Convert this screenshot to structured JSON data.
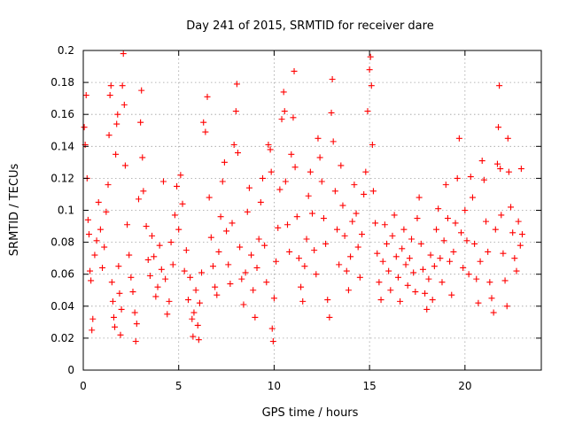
{
  "chart_data": {
    "type": "scatter",
    "title": "Day 241 of 2015, SRMTID for receiver dare",
    "xlabel": "GPS time / hours",
    "ylabel": "SRMTID / TECUs",
    "xlim": [
      0,
      24
    ],
    "ylim": [
      0,
      0.2
    ],
    "xticks": [
      0,
      5,
      10,
      15,
      20
    ],
    "xtick_labels": [
      "0",
      "5",
      "10",
      "15",
      "20"
    ],
    "yticks": [
      0,
      0.02,
      0.04,
      0.06,
      0.08,
      0.1,
      0.12,
      0.14,
      0.16,
      0.18,
      0.2
    ],
    "ytick_labels": [
      "0",
      "0.02",
      "0.04",
      "0.06",
      "0.08",
      "0.1",
      "0.12",
      "0.14",
      "0.16",
      "0.18",
      "0.2"
    ],
    "grid": true,
    "marker": "+",
    "series": [
      {
        "name": "SRMTID",
        "color": "#ff0000",
        "points": [
          [
            0.05,
            0.152
          ],
          [
            0.1,
            0.141
          ],
          [
            0.15,
            0.172
          ],
          [
            0.2,
            0.12
          ],
          [
            0.25,
            0.094
          ],
          [
            0.3,
            0.085
          ],
          [
            0.35,
            0.062
          ],
          [
            0.4,
            0.056
          ],
          [
            0.45,
            0.025
          ],
          [
            0.5,
            0.032
          ],
          [
            0.6,
            0.072
          ],
          [
            0.7,
            0.081
          ],
          [
            0.8,
            0.105
          ],
          [
            0.9,
            0.088
          ],
          [
            1.0,
            0.064
          ],
          [
            1.1,
            0.077
          ],
          [
            1.2,
            0.099
          ],
          [
            1.3,
            0.116
          ],
          [
            1.35,
            0.147
          ],
          [
            1.4,
            0.172
          ],
          [
            1.45,
            0.178
          ],
          [
            1.5,
            0.055
          ],
          [
            1.55,
            0.043
          ],
          [
            1.6,
            0.033
          ],
          [
            1.65,
            0.027
          ],
          [
            1.7,
            0.135
          ],
          [
            1.75,
            0.154
          ],
          [
            1.8,
            0.16
          ],
          [
            1.85,
            0.065
          ],
          [
            1.9,
            0.048
          ],
          [
            1.95,
            0.022
          ],
          [
            2.0,
            0.038
          ],
          [
            2.05,
            0.178
          ],
          [
            2.1,
            0.198
          ],
          [
            2.15,
            0.166
          ],
          [
            2.2,
            0.128
          ],
          [
            2.3,
            0.091
          ],
          [
            2.4,
            0.072
          ],
          [
            2.5,
            0.058
          ],
          [
            2.6,
            0.049
          ],
          [
            2.7,
            0.036
          ],
          [
            2.75,
            0.018
          ],
          [
            2.8,
            0.029
          ],
          [
            2.9,
            0.107
          ],
          [
            3.0,
            0.155
          ],
          [
            3.05,
            0.175
          ],
          [
            3.1,
            0.133
          ],
          [
            3.15,
            0.112
          ],
          [
            3.3,
            0.09
          ],
          [
            3.4,
            0.069
          ],
          [
            3.5,
            0.059
          ],
          [
            3.6,
            0.084
          ],
          [
            3.7,
            0.071
          ],
          [
            3.8,
            0.046
          ],
          [
            3.9,
            0.052
          ],
          [
            4.0,
            0.078
          ],
          [
            4.1,
            0.063
          ],
          [
            4.2,
            0.118
          ],
          [
            4.3,
            0.057
          ],
          [
            4.4,
            0.035
          ],
          [
            4.5,
            0.043
          ],
          [
            4.6,
            0.08
          ],
          [
            4.7,
            0.066
          ],
          [
            4.8,
            0.097
          ],
          [
            4.9,
            0.115
          ],
          [
            5.0,
            0.088
          ],
          [
            5.1,
            0.122
          ],
          [
            5.2,
            0.104
          ],
          [
            5.3,
            0.062
          ],
          [
            5.4,
            0.075
          ],
          [
            5.5,
            0.044
          ],
          [
            5.6,
            0.058
          ],
          [
            5.7,
            0.032
          ],
          [
            5.75,
            0.021
          ],
          [
            5.8,
            0.036
          ],
          [
            5.9,
            0.05
          ],
          [
            6.0,
            0.028
          ],
          [
            6.05,
            0.019
          ],
          [
            6.1,
            0.042
          ],
          [
            6.2,
            0.061
          ],
          [
            6.3,
            0.155
          ],
          [
            6.4,
            0.149
          ],
          [
            6.5,
            0.171
          ],
          [
            6.6,
            0.108
          ],
          [
            6.7,
            0.083
          ],
          [
            6.8,
            0.065
          ],
          [
            6.9,
            0.052
          ],
          [
            7.0,
            0.047
          ],
          [
            7.1,
            0.074
          ],
          [
            7.2,
            0.096
          ],
          [
            7.3,
            0.118
          ],
          [
            7.4,
            0.13
          ],
          [
            7.5,
            0.087
          ],
          [
            7.6,
            0.066
          ],
          [
            7.7,
            0.054
          ],
          [
            7.8,
            0.092
          ],
          [
            7.9,
            0.141
          ],
          [
            8.0,
            0.162
          ],
          [
            8.05,
            0.179
          ],
          [
            8.1,
            0.136
          ],
          [
            8.2,
            0.077
          ],
          [
            8.3,
            0.057
          ],
          [
            8.4,
            0.041
          ],
          [
            8.5,
            0.061
          ],
          [
            8.6,
            0.099
          ],
          [
            8.7,
            0.114
          ],
          [
            8.8,
            0.072
          ],
          [
            8.9,
            0.05
          ],
          [
            9.0,
            0.033
          ],
          [
            9.1,
            0.064
          ],
          [
            9.2,
            0.082
          ],
          [
            9.3,
            0.105
          ],
          [
            9.4,
            0.12
          ],
          [
            9.5,
            0.078
          ],
          [
            9.6,
            0.055
          ],
          [
            9.7,
            0.141
          ],
          [
            9.8,
            0.138
          ],
          [
            9.85,
            0.124
          ],
          [
            9.9,
            0.026
          ],
          [
            9.95,
            0.018
          ],
          [
            10.0,
            0.045
          ],
          [
            10.1,
            0.068
          ],
          [
            10.2,
            0.089
          ],
          [
            10.3,
            0.113
          ],
          [
            10.4,
            0.157
          ],
          [
            10.5,
            0.174
          ],
          [
            10.55,
            0.162
          ],
          [
            10.6,
            0.118
          ],
          [
            10.7,
            0.091
          ],
          [
            10.8,
            0.074
          ],
          [
            10.9,
            0.135
          ],
          [
            11.0,
            0.158
          ],
          [
            11.05,
            0.187
          ],
          [
            11.1,
            0.127
          ],
          [
            11.2,
            0.096
          ],
          [
            11.3,
            0.07
          ],
          [
            11.4,
            0.052
          ],
          [
            11.5,
            0.043
          ],
          [
            11.6,
            0.065
          ],
          [
            11.7,
            0.082
          ],
          [
            11.8,
            0.109
          ],
          [
            11.9,
            0.124
          ],
          [
            12.0,
            0.098
          ],
          [
            12.1,
            0.075
          ],
          [
            12.2,
            0.06
          ],
          [
            12.3,
            0.145
          ],
          [
            12.4,
            0.133
          ],
          [
            12.5,
            0.118
          ],
          [
            12.6,
            0.095
          ],
          [
            12.7,
            0.079
          ],
          [
            12.8,
            0.044
          ],
          [
            12.9,
            0.033
          ],
          [
            13.0,
            0.161
          ],
          [
            13.05,
            0.182
          ],
          [
            13.1,
            0.143
          ],
          [
            13.2,
            0.112
          ],
          [
            13.3,
            0.088
          ],
          [
            13.4,
            0.066
          ],
          [
            13.5,
            0.128
          ],
          [
            13.6,
            0.103
          ],
          [
            13.7,
            0.084
          ],
          [
            13.8,
            0.062
          ],
          [
            13.9,
            0.05
          ],
          [
            14.0,
            0.071
          ],
          [
            14.1,
            0.093
          ],
          [
            14.2,
            0.116
          ],
          [
            14.3,
            0.098
          ],
          [
            14.4,
            0.077
          ],
          [
            14.5,
            0.058
          ],
          [
            14.6,
            0.085
          ],
          [
            14.7,
            0.11
          ],
          [
            14.8,
            0.124
          ],
          [
            14.9,
            0.162
          ],
          [
            15.0,
            0.188
          ],
          [
            15.05,
            0.196
          ],
          [
            15.1,
            0.178
          ],
          [
            15.15,
            0.141
          ],
          [
            15.2,
            0.112
          ],
          [
            15.3,
            0.092
          ],
          [
            15.4,
            0.073
          ],
          [
            15.5,
            0.055
          ],
          [
            15.6,
            0.044
          ],
          [
            15.7,
            0.068
          ],
          [
            15.8,
            0.091
          ],
          [
            15.9,
            0.079
          ],
          [
            16.0,
            0.062
          ],
          [
            16.1,
            0.05
          ],
          [
            16.2,
            0.084
          ],
          [
            16.3,
            0.097
          ],
          [
            16.4,
            0.071
          ],
          [
            16.5,
            0.058
          ],
          [
            16.6,
            0.043
          ],
          [
            16.7,
            0.076
          ],
          [
            16.8,
            0.088
          ],
          [
            16.9,
            0.066
          ],
          [
            17.0,
            0.053
          ],
          [
            17.1,
            0.07
          ],
          [
            17.2,
            0.082
          ],
          [
            17.3,
            0.061
          ],
          [
            17.4,
            0.049
          ],
          [
            17.5,
            0.095
          ],
          [
            17.6,
            0.108
          ],
          [
            17.7,
            0.079
          ],
          [
            17.8,
            0.063
          ],
          [
            17.9,
            0.048
          ],
          [
            18.0,
            0.038
          ],
          [
            18.1,
            0.057
          ],
          [
            18.2,
            0.072
          ],
          [
            18.3,
            0.044
          ],
          [
            18.4,
            0.065
          ],
          [
            18.5,
            0.088
          ],
          [
            18.6,
            0.101
          ],
          [
            18.7,
            0.07
          ],
          [
            18.8,
            0.055
          ],
          [
            18.9,
            0.081
          ],
          [
            19.0,
            0.116
          ],
          [
            19.1,
            0.095
          ],
          [
            19.2,
            0.068
          ],
          [
            19.3,
            0.047
          ],
          [
            19.4,
            0.074
          ],
          [
            19.5,
            0.092
          ],
          [
            19.6,
            0.12
          ],
          [
            19.7,
            0.145
          ],
          [
            19.8,
            0.086
          ],
          [
            19.9,
            0.064
          ],
          [
            20.0,
            0.1
          ],
          [
            20.1,
            0.081
          ],
          [
            20.2,
            0.06
          ],
          [
            20.3,
            0.121
          ],
          [
            20.4,
            0.108
          ],
          [
            20.5,
            0.079
          ],
          [
            20.6,
            0.057
          ],
          [
            20.7,
            0.042
          ],
          [
            20.8,
            0.068
          ],
          [
            20.9,
            0.131
          ],
          [
            21.0,
            0.119
          ],
          [
            21.1,
            0.093
          ],
          [
            21.2,
            0.074
          ],
          [
            21.3,
            0.055
          ],
          [
            21.4,
            0.045
          ],
          [
            21.5,
            0.036
          ],
          [
            21.6,
            0.088
          ],
          [
            21.7,
            0.129
          ],
          [
            21.75,
            0.152
          ],
          [
            21.8,
            0.178
          ],
          [
            21.85,
            0.126
          ],
          [
            21.9,
            0.097
          ],
          [
            22.0,
            0.073
          ],
          [
            22.1,
            0.056
          ],
          [
            22.2,
            0.04
          ],
          [
            22.25,
            0.145
          ],
          [
            22.3,
            0.124
          ],
          [
            22.4,
            0.102
          ],
          [
            22.5,
            0.086
          ],
          [
            22.6,
            0.07
          ],
          [
            22.7,
            0.062
          ],
          [
            22.8,
            0.093
          ],
          [
            22.9,
            0.078
          ],
          [
            22.95,
            0.126
          ],
          [
            23.0,
            0.085
          ]
        ]
      }
    ]
  }
}
